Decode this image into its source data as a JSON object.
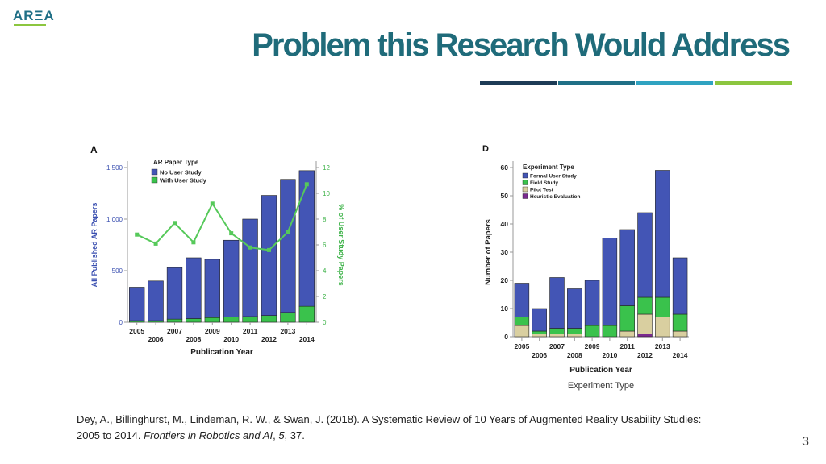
{
  "logo_text": "ARΞA",
  "title": "Problem this Research Would Address",
  "rule_colors": [
    "#1d3b56",
    "#1f6f86",
    "#2fa3c1",
    "#8cc63f"
  ],
  "citation": {
    "authors": "Dey, A., Billinghurst, M., Lindeman, R. W., & Swan, J. (2018). A Systematic Review of 10 Years of Augmented Reality Usability Studies: 2005 to 2014. ",
    "journal": "Frontiers in Robotics and AI",
    "sep1": ", ",
    "volume": "5",
    "rest": ", 37."
  },
  "page_number": "3",
  "chart_data": [
    {
      "panel": "A",
      "type": "bar",
      "stacked": true,
      "categories": [
        "2005",
        "2006",
        "2007",
        "2008",
        "2009",
        "2010",
        "2011",
        "2012",
        "2013",
        "2014"
      ],
      "series": [
        {
          "name": "No User Study",
          "color": "#4355b5",
          "values": [
            325,
            385,
            500,
            590,
            565,
            745,
            945,
            1165,
            1290,
            1315
          ]
        },
        {
          "name": "With User Study",
          "color": "#3ac24c",
          "values": [
            15,
            15,
            30,
            35,
            45,
            50,
            55,
            65,
            95,
            155
          ]
        }
      ],
      "line_series": {
        "name": "% of User Study Papers",
        "color": "#56c95a",
        "axis": "right",
        "values": [
          6.8,
          6.1,
          7.7,
          6.2,
          9.2,
          6.9,
          5.8,
          5.6,
          7.0,
          10.7
        ]
      },
      "legend_title": "AR Paper Type",
      "xlabel": "Publication Year",
      "ylabel": "All Published AR Papers",
      "y2label": "% of User Study Papers",
      "ylim": [
        0,
        1500
      ],
      "y_ticks": [
        0,
        500,
        1000,
        1500
      ],
      "y_tick_labels": [
        "0",
        "500",
        "1,000",
        "1,500"
      ],
      "y2lim": [
        0,
        12
      ],
      "y2_ticks": [
        0,
        2,
        4,
        6,
        8,
        10,
        12
      ]
    },
    {
      "panel": "D",
      "type": "bar",
      "stacked": true,
      "categories": [
        "2005",
        "2006",
        "2007",
        "2008",
        "2009",
        "2010",
        "2011",
        "2012",
        "2013",
        "2014"
      ],
      "series": [
        {
          "name": "Heuristic Evaluation",
          "color": "#7a2a8f",
          "values": [
            0,
            0,
            0,
            0,
            0,
            0,
            0,
            1,
            0,
            0
          ]
        },
        {
          "name": "Pilot Test",
          "color": "#d9cfa0",
          "values": [
            4,
            1,
            1,
            1,
            0,
            0,
            2,
            7,
            7,
            2
          ]
        },
        {
          "name": "Field Study",
          "color": "#3ac24c",
          "values": [
            3,
            1,
            2,
            2,
            4,
            4,
            9,
            6,
            7,
            6
          ]
        },
        {
          "name": "Formal User Study",
          "color": "#4355b5",
          "values": [
            12,
            8,
            18,
            14,
            16,
            31,
            27,
            30,
            45,
            20
          ]
        }
      ],
      "legend_title": "Experiment Type",
      "legend_order": [
        "Formal User Study",
        "Field Study",
        "Pilot Test",
        "Heuristic Evaluation"
      ],
      "xlabel": "Publication Year",
      "ylabel": "Number of Papers",
      "ylim": [
        0,
        60
      ],
      "y_ticks": [
        0,
        10,
        20,
        30,
        40,
        50,
        60
      ],
      "caption": "Experiment Type"
    }
  ]
}
